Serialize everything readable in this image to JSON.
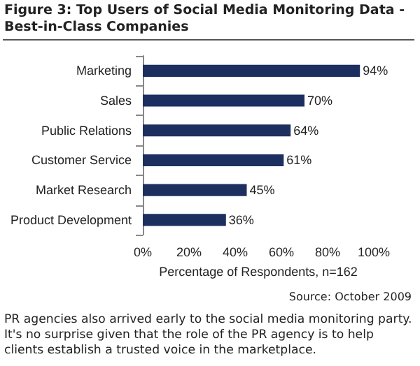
{
  "chart_data": {
    "type": "bar",
    "orientation": "horizontal",
    "title": "Figure 3: Top Users of Social Media Monitoring Data - Best-in-Class Companies",
    "xlabel": "Percentage of Respondents, n=162",
    "categories": [
      "Marketing",
      "Sales",
      "Public Relations",
      "Customer Service",
      "Market Research",
      "Product Development"
    ],
    "values": [
      94,
      70,
      64,
      61,
      45,
      36
    ],
    "value_labels": [
      "94%",
      "70%",
      "64%",
      "61%",
      "45%",
      "36%"
    ],
    "color": "#1c2f5e",
    "xlim": [
      0,
      100
    ],
    "xticks": [
      {
        "value": 0,
        "label": "0%"
      },
      {
        "value": 20,
        "label": "20%"
      },
      {
        "value": 40,
        "label": "40%"
      },
      {
        "value": 60,
        "label": "60%"
      },
      {
        "value": 80,
        "label": "80%"
      },
      {
        "value": 100,
        "label": "100%"
      }
    ],
    "grid": false,
    "annotations": [
      "Source: October 2009",
      "PR agencies also arrived early to the social media monitoring party. It's no surprise given that the role of the PR agency is to help clients establish a trusted voice in the marketplace."
    ]
  }
}
